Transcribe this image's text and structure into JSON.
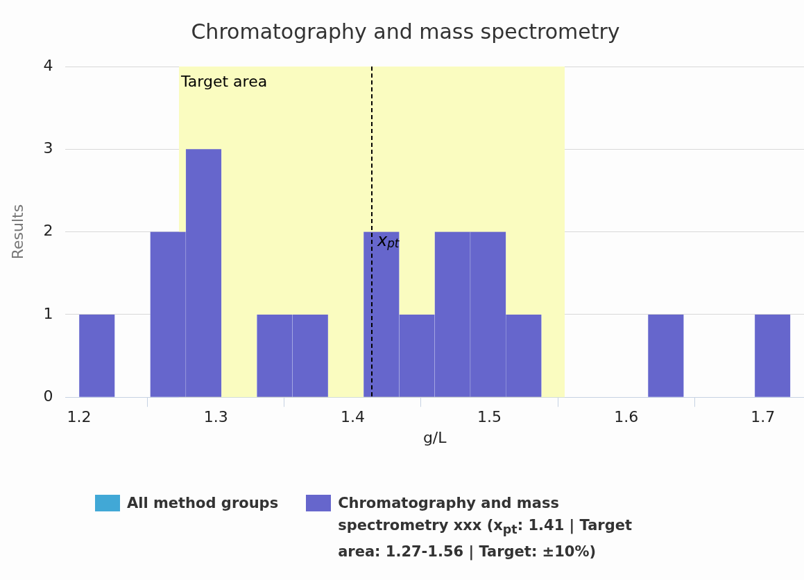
{
  "chart_data": {
    "type": "histogram",
    "title": "Chromatography and mass spectrometry",
    "xlabel": "g/L",
    "ylabel": "Results",
    "bins": [
      1.2,
      1.226,
      1.252,
      1.278,
      1.304,
      1.33,
      1.356,
      1.382,
      1.408,
      1.434,
      1.46,
      1.486,
      1.512,
      1.538,
      1.564,
      1.59,
      1.616,
      1.642,
      1.668,
      1.694,
      1.72
    ],
    "series": [
      {
        "name": "All method groups",
        "color": "#41a8d6",
        "values": [
          0,
          0,
          0,
          0,
          0,
          0,
          0,
          0,
          0,
          0,
          0,
          0,
          0,
          0,
          0,
          0,
          0,
          0,
          0,
          0
        ]
      },
      {
        "name": "Chromatography and mass spectrometry xxx (x$_{pt}$: 1.41 | Target area: 1.27-1.56 | Target: ±10%)",
        "color": "#6666cc",
        "values": [
          1,
          0,
          2,
          3,
          0,
          1,
          1,
          0,
          2,
          1,
          2,
          2,
          1,
          0,
          0,
          0,
          1,
          0,
          0,
          1
        ]
      }
    ],
    "xlim": [
      1.19,
      1.73
    ],
    "xticks": [
      1.2,
      1.3,
      1.4,
      1.5,
      1.6,
      1.7
    ],
    "ylim": [
      0,
      4
    ],
    "yticks": [
      0,
      1,
      2,
      3,
      4
    ],
    "grid": "y",
    "legend": "bottom",
    "bands": [
      {
        "axis": "x",
        "from": 1.273,
        "to": 1.555,
        "label": "Target area",
        "color": "#fafcc0"
      }
    ],
    "ref_lines": [
      {
        "axis": "x",
        "value": 1.414,
        "label": "x$_{pt}$",
        "color": "#000000",
        "line_style": "dashed"
      }
    ]
  }
}
